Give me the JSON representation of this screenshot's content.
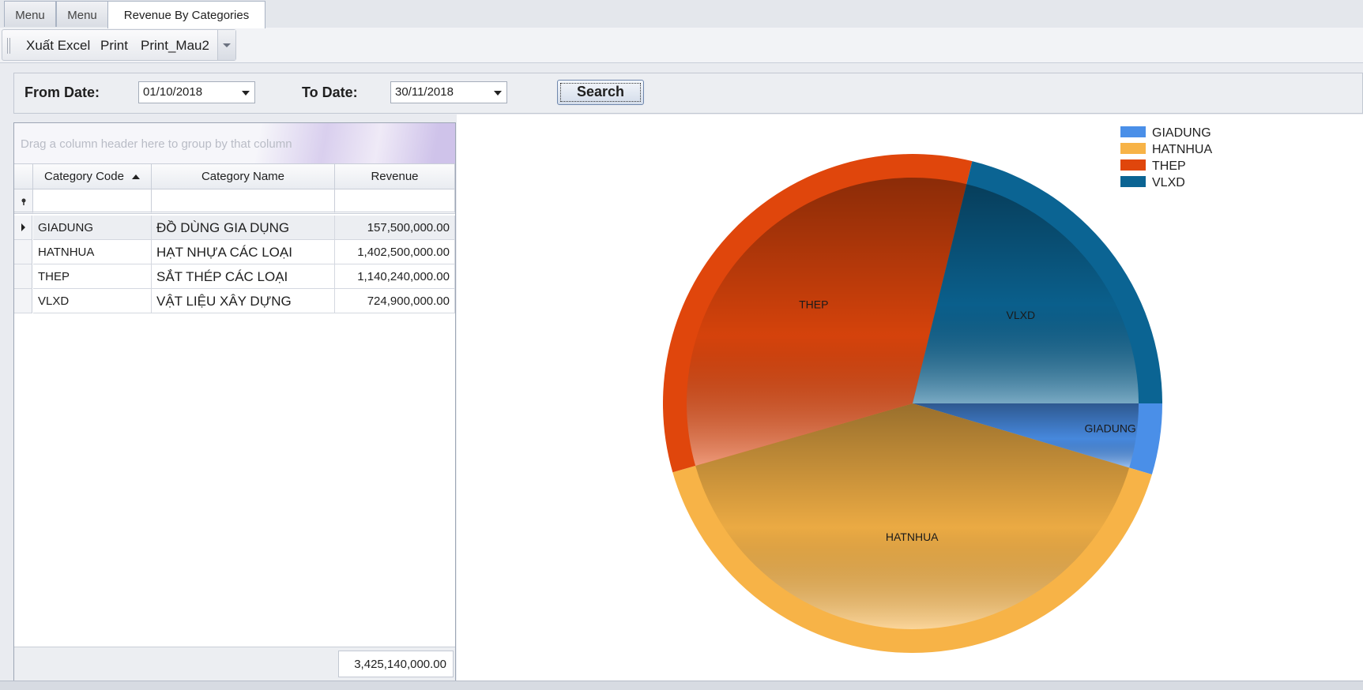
{
  "tabs": [
    {
      "label": "Menu",
      "active": false
    },
    {
      "label": "Menu",
      "active": false
    },
    {
      "label": "Revenue By Categories",
      "active": true
    }
  ],
  "toolbar": {
    "export_label": "Xuất Excel",
    "print_label": "Print",
    "print2_label": "Print_Mau2"
  },
  "filter": {
    "from_label": "From Date:",
    "from_value": "01/10/2018",
    "to_label": "To Date:",
    "to_value": "30/11/2018",
    "search_label": "Search"
  },
  "grid": {
    "group_hint": "Drag a column header here to group by that column",
    "columns": [
      "Category Code",
      "Category Name",
      "Revenue"
    ],
    "rows": [
      {
        "code": "GIADUNG",
        "name": "ĐỒ DÙNG GIA DỤNG",
        "revenue": "157,500,000.00"
      },
      {
        "code": "HATNHUA",
        "name": "HẠT NHỰA CÁC LOẠI",
        "revenue": "1,402,500,000.00"
      },
      {
        "code": "THEP",
        "name": "SẮT THÉP CÁC LOẠI",
        "revenue": "1,140,240,000.00"
      },
      {
        "code": "VLXD",
        "name": "VẬT LIỆU XÂY DỰNG",
        "revenue": "724,900,000.00"
      }
    ],
    "total": "3,425,140,000.00"
  },
  "chart_data": {
    "type": "pie",
    "categories": [
      "GIADUNG",
      "HATNHUA",
      "THEP",
      "VLXD"
    ],
    "values": [
      157500000,
      1402500000,
      1140240000,
      724900000
    ],
    "colors": [
      "#4a8fe8",
      "#f7b347",
      "#e0460c",
      "#0b6493"
    ],
    "legend": [
      "GIADUNG",
      "HATNHUA",
      "THEP",
      "VLXD"
    ],
    "legend_position": "top-right"
  }
}
